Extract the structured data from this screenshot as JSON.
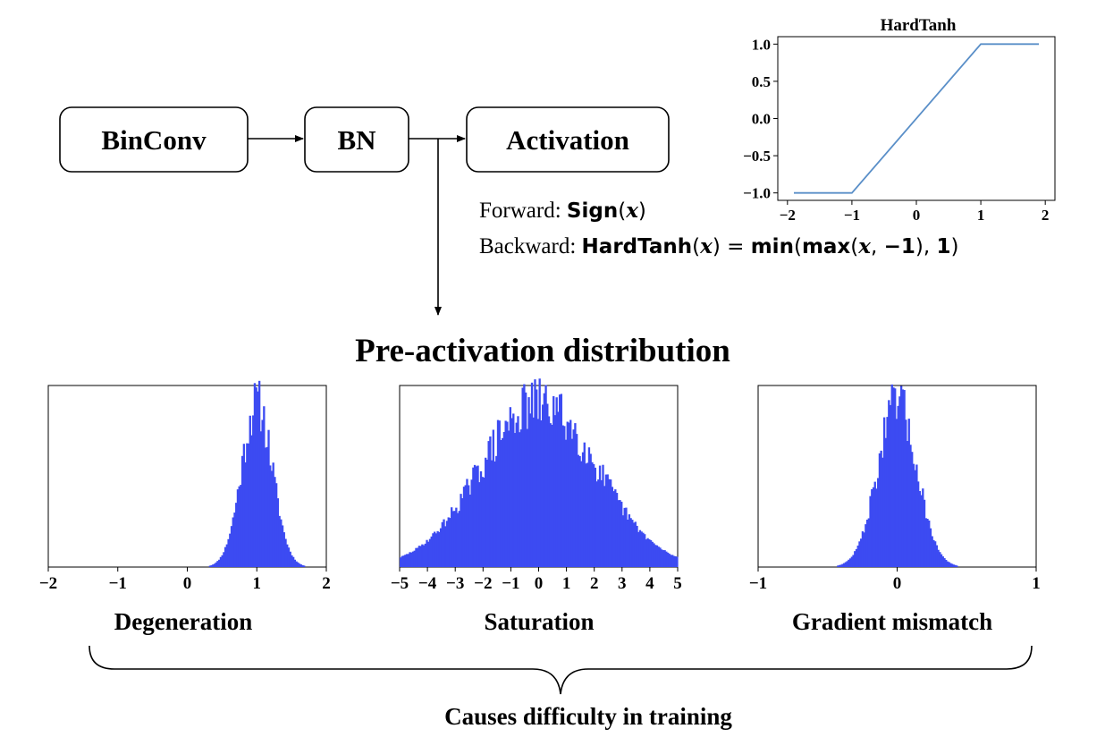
{
  "pipeline": {
    "blocks": [
      "BinConv",
      "BN",
      "Activation"
    ]
  },
  "formulas": {
    "forward_label": "Forward: ",
    "forward_fn": "Sign",
    "forward_arg": "x",
    "backward_label": "Backward: ",
    "backward_fn": "HardTanh",
    "backward_arg": "x",
    "backward_eq": " = ",
    "backward_min": "min",
    "backward_max": "max",
    "backward_neg1": "−1",
    "backward_one": "1"
  },
  "section_title": "Pre-activation distribution",
  "captions": [
    "Degeneration",
    "Saturation",
    "Gradient mismatch"
  ],
  "summary": "Causes difficulty in training",
  "colors": {
    "histogram": "#3c4bf2",
    "line": "#5a8fc8",
    "frame": "#000000"
  },
  "chart_data": [
    {
      "type": "line",
      "title": "HardTanh",
      "x": [
        -1.9,
        -1.0,
        1.0,
        1.9
      ],
      "y": [
        -1.0,
        -1.0,
        1.0,
        1.0
      ],
      "xlim": [
        -2.15,
        2.15
      ],
      "ylim": [
        -1.1,
        1.1
      ],
      "xticks": [
        -2,
        -1,
        0,
        1,
        2
      ],
      "xtick_labels": [
        "−2",
        "−1",
        "0",
        "1",
        "2"
      ],
      "yticks": [
        -1.0,
        -0.5,
        0.0,
        0.5,
        1.0
      ],
      "ytick_labels": [
        "−1.0",
        "−0.5",
        "0.0",
        "0.5",
        "1.0"
      ]
    },
    {
      "type": "area",
      "name": "degeneration-histogram",
      "xlim": [
        -2,
        2
      ],
      "mean": 1.0,
      "std": 0.22,
      "bins": 180,
      "xticks": [
        -2,
        -1,
        0,
        1,
        2
      ],
      "xtick_labels": [
        "−2",
        "−1",
        "0",
        "1",
        "2"
      ]
    },
    {
      "type": "area",
      "name": "saturation-histogram",
      "xlim": [
        -5,
        5
      ],
      "mean": 0.0,
      "std": 2.1,
      "bins": 180,
      "xticks": [
        -5,
        -4,
        -3,
        -2,
        -1,
        0,
        1,
        2,
        3,
        4,
        5
      ],
      "xtick_labels": [
        "−5",
        "−4",
        "−3",
        "−2",
        "−1",
        "0",
        "1",
        "2",
        "3",
        "4",
        "5"
      ]
    },
    {
      "type": "area",
      "name": "gradient-mismatch-histogram",
      "xlim": [
        -1,
        1
      ],
      "mean": 0.0,
      "std": 0.14,
      "bins": 180,
      "xticks": [
        -1,
        0,
        1
      ],
      "xtick_labels": [
        "−1",
        "0",
        "1"
      ]
    }
  ]
}
